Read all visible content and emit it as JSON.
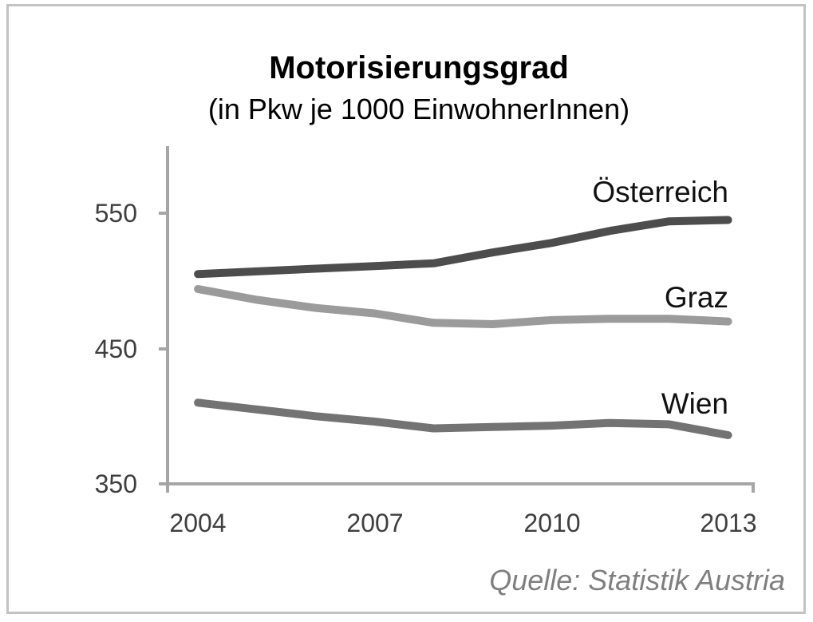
{
  "chart": {
    "title": "Motorisierungsgrad",
    "subtitle": "(in Pkw je 1000 EinwohnerInnen)",
    "source": "Quelle: Statistik Austria",
    "colors": {
      "axis": "#a6a6a6",
      "tick_label": "#3f3f3f",
      "series_label": "#111111",
      "source_text": "#7f7f7f",
      "frame": "#c3c3c3"
    }
  },
  "chart_data": {
    "type": "line",
    "title": "Motorisierungsgrad",
    "subtitle": "(in Pkw je 1000 EinwohnerInnen)",
    "source": "Quelle: Statistik Austria",
    "x": [
      2004,
      2005,
      2006,
      2007,
      2008,
      2009,
      2010,
      2011,
      2012,
      2013
    ],
    "xticks": [
      "2004",
      "2007",
      "2010",
      "2013"
    ],
    "yticks": [
      "550",
      "450",
      "350"
    ],
    "ylim": [
      350,
      600
    ],
    "xlabel": "",
    "ylabel": "",
    "grid": false,
    "legend_position": "inline-right-of-lines",
    "series": [
      {
        "name": "Österreich",
        "color": "#4d4d4d",
        "values": [
          505,
          507,
          509,
          511,
          513,
          521,
          528,
          537,
          544,
          545
        ]
      },
      {
        "name": "Graz",
        "color": "#9b9b9b",
        "values": [
          494,
          486,
          480,
          476,
          469,
          468,
          471,
          472,
          472,
          470
        ]
      },
      {
        "name": "Wien",
        "color": "#737373",
        "values": [
          410,
          405,
          400,
          396,
          391,
          392,
          393,
          395,
          394,
          386
        ]
      }
    ]
  }
}
